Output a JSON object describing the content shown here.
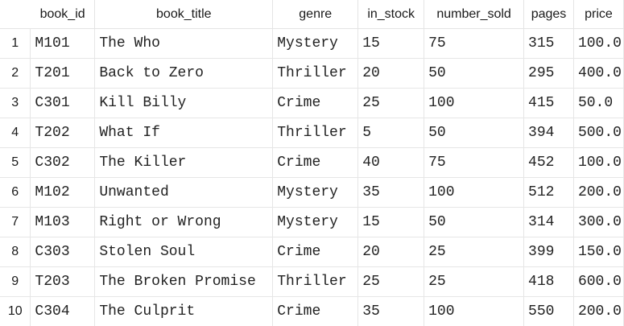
{
  "table": {
    "columns": [
      "book_id",
      "book_title",
      "genre",
      "in_stock",
      "number_sold",
      "pages",
      "price"
    ],
    "rows": [
      {
        "num": "1",
        "cells": [
          "M101",
          "The Who",
          "Mystery",
          "15",
          "75",
          "315",
          "100.0"
        ]
      },
      {
        "num": "2",
        "cells": [
          "T201",
          "Back to Zero",
          "Thriller",
          "20",
          "50",
          "295",
          "400.0"
        ]
      },
      {
        "num": "3",
        "cells": [
          "C301",
          "Kill Billy",
          "Crime",
          "25",
          "100",
          "415",
          "50.0"
        ]
      },
      {
        "num": "4",
        "cells": [
          "T202",
          "What If",
          "Thriller",
          "5",
          "50",
          "394",
          "500.0"
        ]
      },
      {
        "num": "5",
        "cells": [
          "C302",
          "The Killer",
          "Crime",
          "40",
          "75",
          "452",
          "100.0"
        ]
      },
      {
        "num": "6",
        "cells": [
          "M102",
          "Unwanted",
          "Mystery",
          "35",
          "100",
          "512",
          "200.0"
        ]
      },
      {
        "num": "7",
        "cells": [
          "M103",
          "Right or Wrong",
          "Mystery",
          "15",
          "50",
          "314",
          "300.0"
        ]
      },
      {
        "num": "8",
        "cells": [
          "C303",
          "Stolen Soul",
          "Crime",
          "20",
          "25",
          "399",
          "150.0"
        ]
      },
      {
        "num": "9",
        "cells": [
          "T203",
          "The Broken Promise",
          "Thriller",
          "25",
          "25",
          "418",
          "600.0"
        ]
      },
      {
        "num": "10",
        "cells": [
          "C304",
          "The Culprit",
          "Crime",
          "35",
          "100",
          "550",
          "200.0"
        ]
      }
    ]
  }
}
